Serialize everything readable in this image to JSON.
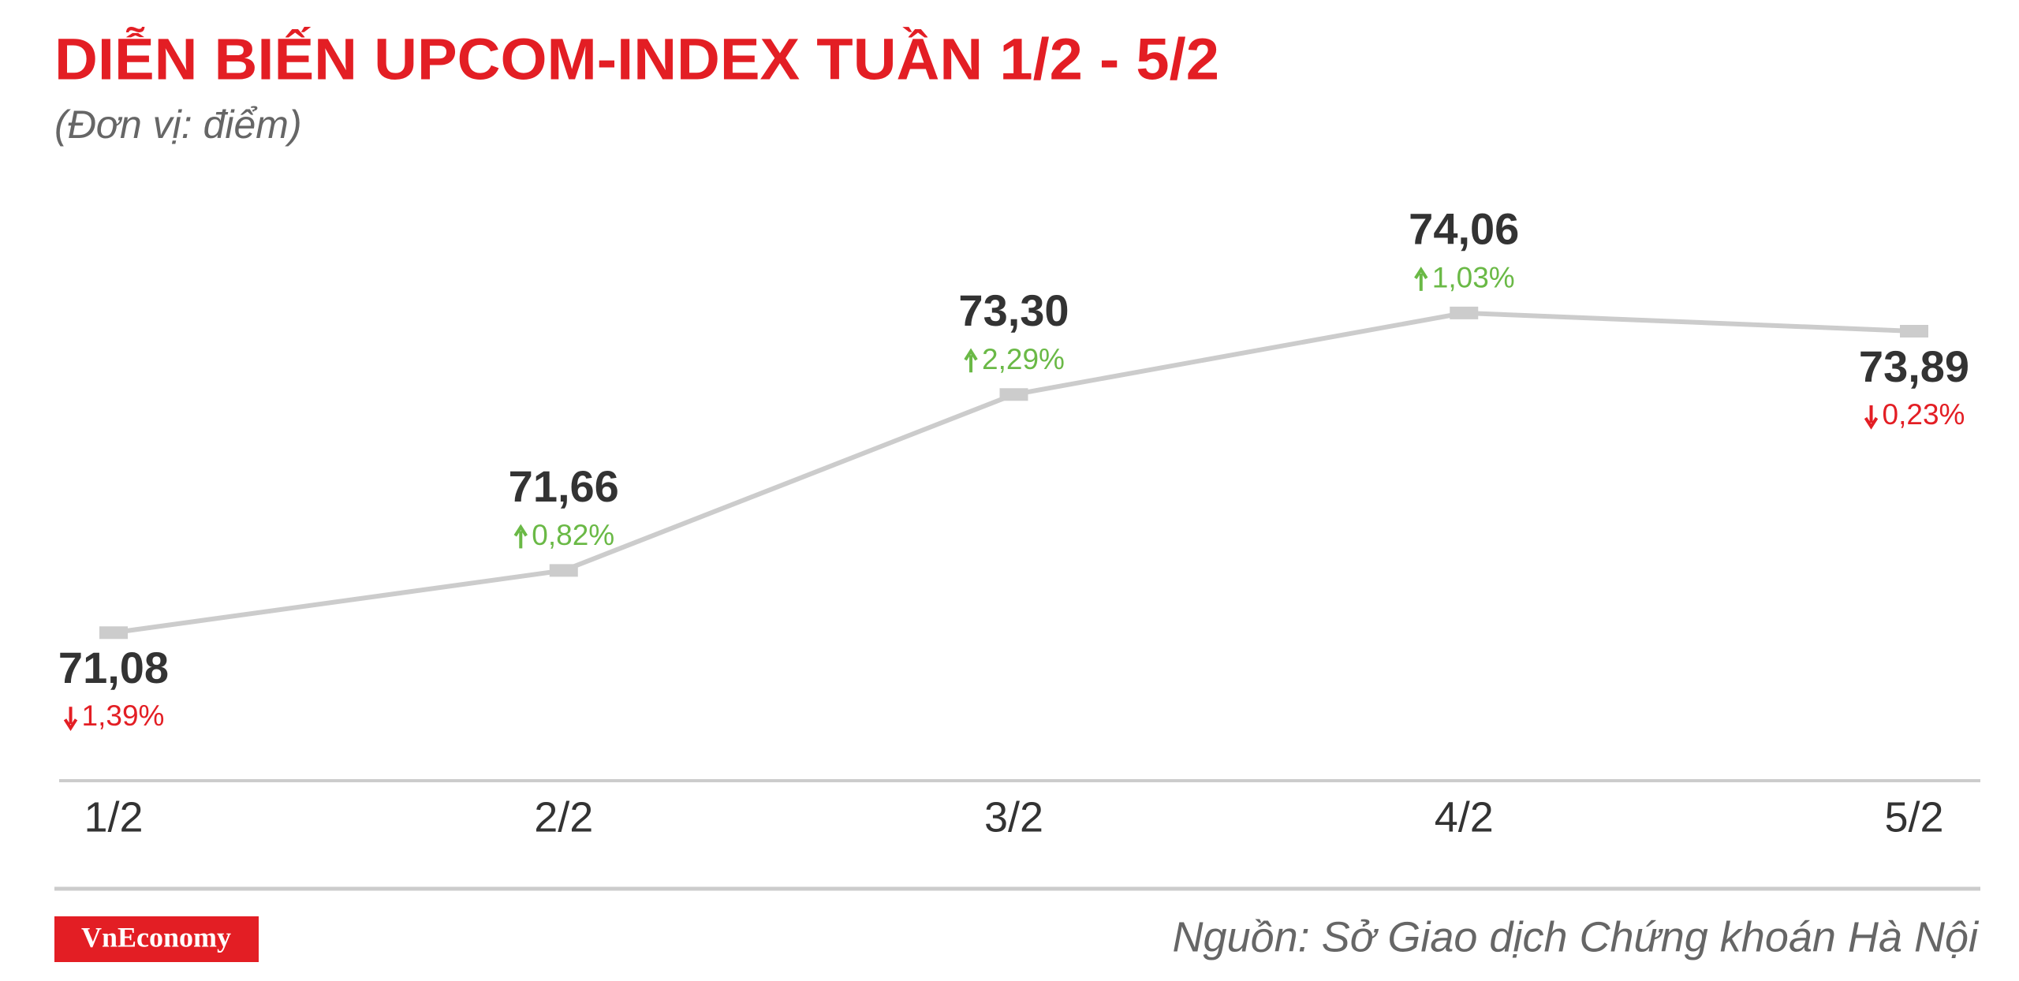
{
  "chart_data": {
    "type": "line",
    "title": "DIỄN BIẾN UPCOM-INDEX TUẦN 1/2 - 5/2",
    "subtitle": "(Đơn vị: điểm)",
    "categories": [
      "1/2",
      "2/2",
      "3/2",
      "4/2",
      "5/2"
    ],
    "series": [
      {
        "color": "#cccccc",
        "values": [
          71.08,
          71.66,
          73.3,
          74.06,
          73.89
        ],
        "value_labels": [
          "71,08",
          "71,66",
          "73,30",
          "74,06",
          "73,89"
        ],
        "changes": [
          -1.39,
          0.82,
          2.29,
          1.03,
          -0.23
        ],
        "change_labels": [
          "1,39%",
          "0,82%",
          "2,29%",
          "1,03%",
          "0,23%"
        ]
      }
    ],
    "up_color": "#6ab946",
    "down_color": "#e31e24",
    "ylim": [
      69.7,
      75
    ],
    "source": "Nguồn: Sở Giao dịch Chứng khoán Hà Nội",
    "logo": "VnEconomy"
  }
}
